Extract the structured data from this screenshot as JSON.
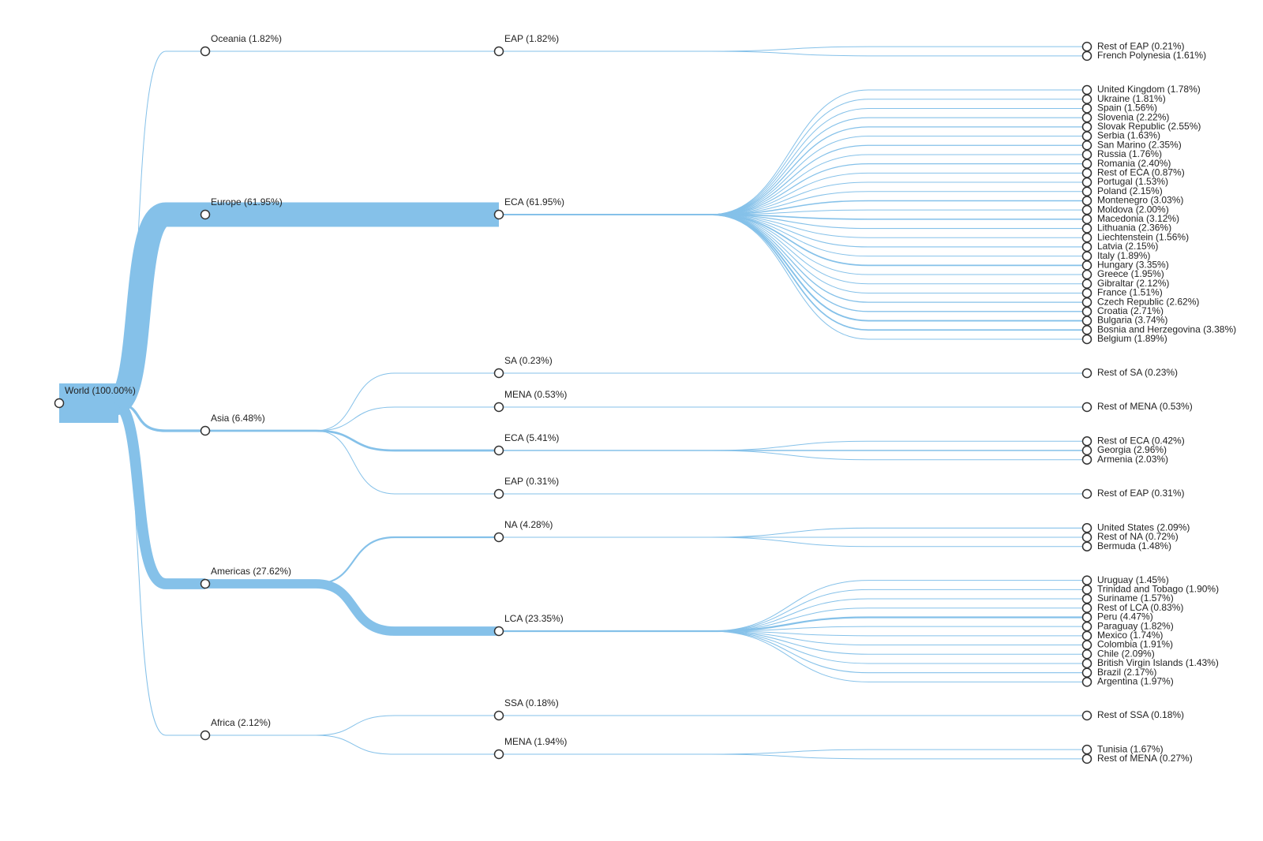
{
  "tree": {
    "label": "World (100.00%)",
    "value": 100,
    "children": [
      {
        "label": "Oceania (1.82%)",
        "value": 1.82,
        "children": [
          {
            "label": "EAP (1.82%)",
            "value": 1.82,
            "children": [
              {
                "label": "Rest of EAP (0.21%)",
                "value": 0.21
              },
              {
                "label": "French Polynesia (1.61%)",
                "value": 1.61
              }
            ]
          }
        ]
      },
      {
        "label": "Europe (61.95%)",
        "value": 61.95,
        "children": [
          {
            "label": "ECA (61.95%)",
            "value": 61.95,
            "children": [
              {
                "label": "United Kingdom (1.78%)",
                "value": 1.78
              },
              {
                "label": "Ukraine (1.81%)",
                "value": 1.81
              },
              {
                "label": "Spain (1.56%)",
                "value": 1.56
              },
              {
                "label": "Slovenia (2.22%)",
                "value": 2.22
              },
              {
                "label": "Slovak Republic (2.55%)",
                "value": 2.55
              },
              {
                "label": "Serbia (1.63%)",
                "value": 1.63
              },
              {
                "label": "San Marino (2.35%)",
                "value": 2.35
              },
              {
                "label": "Russia (1.76%)",
                "value": 1.76
              },
              {
                "label": "Romania (2.40%)",
                "value": 2.4
              },
              {
                "label": "Rest of ECA (0.87%)",
                "value": 0.87
              },
              {
                "label": "Portugal (1.53%)",
                "value": 1.53
              },
              {
                "label": "Poland (2.15%)",
                "value": 2.15
              },
              {
                "label": "Montenegro (3.03%)",
                "value": 3.03
              },
              {
                "label": "Moldova (2.00%)",
                "value": 2.0
              },
              {
                "label": "Macedonia (3.12%)",
                "value": 3.12
              },
              {
                "label": "Lithuania (2.36%)",
                "value": 2.36
              },
              {
                "label": "Liechtenstein (1.56%)",
                "value": 1.56
              },
              {
                "label": "Latvia (2.15%)",
                "value": 2.15
              },
              {
                "label": "Italy (1.89%)",
                "value": 1.89
              },
              {
                "label": "Hungary (3.35%)",
                "value": 3.35
              },
              {
                "label": "Greece (1.95%)",
                "value": 1.95
              },
              {
                "label": "Gibraltar (2.12%)",
                "value": 2.12
              },
              {
                "label": "France (1.51%)",
                "value": 1.51
              },
              {
                "label": "Czech Republic (2.62%)",
                "value": 2.62
              },
              {
                "label": "Croatia (2.71%)",
                "value": 2.71
              },
              {
                "label": "Bulgaria (3.74%)",
                "value": 3.74
              },
              {
                "label": "Bosnia and Herzegovina (3.38%)",
                "value": 3.38
              },
              {
                "label": "Belgium (1.89%)",
                "value": 1.89
              }
            ]
          }
        ]
      },
      {
        "label": "Asia (6.48%)",
        "value": 6.48,
        "children": [
          {
            "label": "SA (0.23%)",
            "value": 0.23,
            "children": [
              {
                "label": "Rest of SA (0.23%)",
                "value": 0.23
              }
            ]
          },
          {
            "label": "MENA (0.53%)",
            "value": 0.53,
            "children": [
              {
                "label": "Rest of MENA (0.53%)",
                "value": 0.53
              }
            ]
          },
          {
            "label": "ECA (5.41%)",
            "value": 5.41,
            "children": [
              {
                "label": "Rest of ECA (0.42%)",
                "value": 0.42
              },
              {
                "label": "Georgia (2.96%)",
                "value": 2.96
              },
              {
                "label": "Armenia (2.03%)",
                "value": 2.03
              }
            ]
          },
          {
            "label": "EAP (0.31%)",
            "value": 0.31,
            "children": [
              {
                "label": "Rest of EAP (0.31%)",
                "value": 0.31
              }
            ]
          }
        ]
      },
      {
        "label": "Americas (27.62%)",
        "value": 27.62,
        "children": [
          {
            "label": "NA (4.28%)",
            "value": 4.28,
            "children": [
              {
                "label": "United States (2.09%)",
                "value": 2.09
              },
              {
                "label": "Rest of NA (0.72%)",
                "value": 0.72
              },
              {
                "label": "Bermuda (1.48%)",
                "value": 1.48
              }
            ]
          },
          {
            "label": "LCA (23.35%)",
            "value": 23.35,
            "children": [
              {
                "label": "Uruguay (1.45%)",
                "value": 1.45
              },
              {
                "label": "Trinidad and Tobago (1.90%)",
                "value": 1.9
              },
              {
                "label": "Suriname (1.57%)",
                "value": 1.57
              },
              {
                "label": "Rest of LCA (0.83%)",
                "value": 0.83
              },
              {
                "label": "Peru (4.47%)",
                "value": 4.47
              },
              {
                "label": "Paraguay (1.82%)",
                "value": 1.82
              },
              {
                "label": "Mexico (1.74%)",
                "value": 1.74
              },
              {
                "label": "Colombia (1.91%)",
                "value": 1.91
              },
              {
                "label": "Chile (2.09%)",
                "value": 2.09
              },
              {
                "label": "British Virgin Islands (1.43%)",
                "value": 1.43
              },
              {
                "label": "Brazil (2.17%)",
                "value": 2.17
              },
              {
                "label": "Argentina (1.97%)",
                "value": 1.97
              }
            ]
          }
        ]
      },
      {
        "label": "Africa (2.12%)",
        "value": 2.12,
        "children": [
          {
            "label": "SSA (0.18%)",
            "value": 0.18,
            "children": [
              {
                "label": "Rest of SSA (0.18%)",
                "value": 0.18
              }
            ]
          },
          {
            "label": "MENA (1.94%)",
            "value": 1.94,
            "children": [
              {
                "label": "Tunisia (1.67%)",
                "value": 1.67
              },
              {
                "label": "Rest of MENA (0.27%)",
                "value": 0.27
              }
            ]
          }
        ]
      }
    ]
  }
}
